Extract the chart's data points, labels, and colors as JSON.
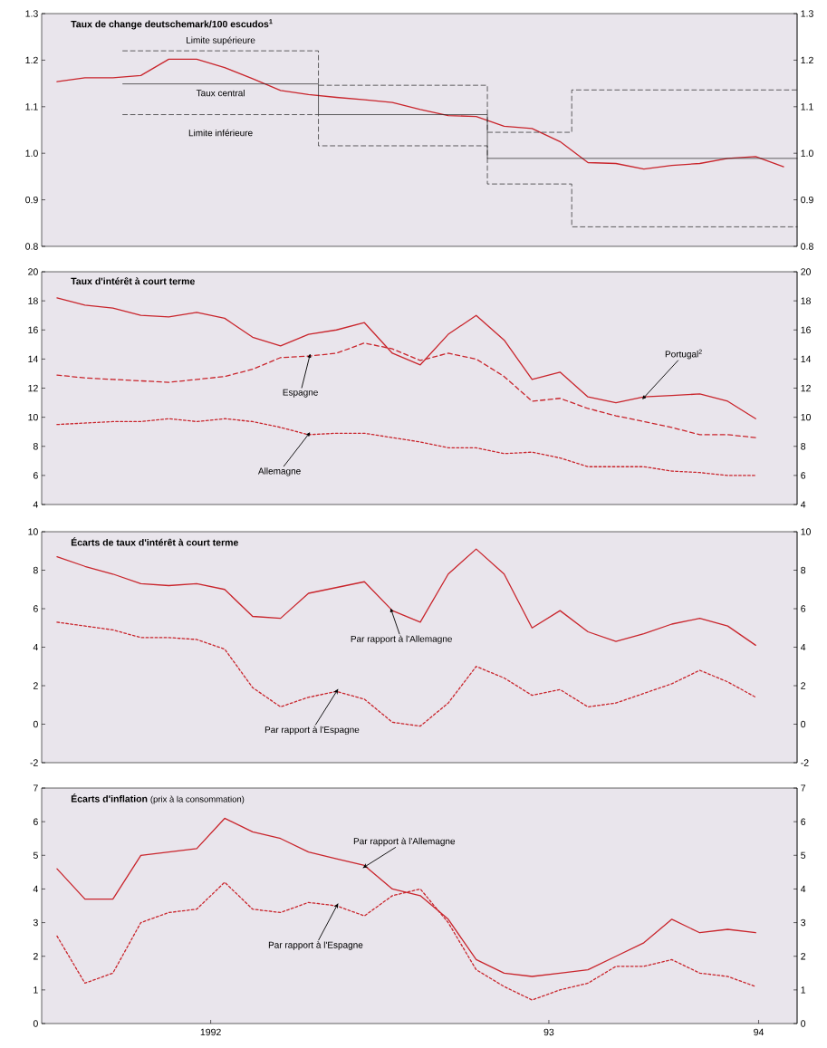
{
  "chart_data": [
    {
      "type": "line",
      "title": "Taux de change deutschemark/100 escudos$^{1}$",
      "x": [
        "1992-01",
        "1992-02",
        "1992-03",
        "1992-04",
        "1992-05",
        "1992-06",
        "1992-07",
        "1992-08",
        "1992-09",
        "1992-10",
        "1992-11",
        "1992-12",
        "1993-01",
        "1993-02",
        "1993-03",
        "1993-04",
        "1993-05",
        "1993-06",
        "1993-07",
        "1993-08",
        "1993-09",
        "1993-10",
        "1993-11",
        "1993-12",
        "1994-01",
        "1994-02",
        "1994-03"
      ],
      "xlim": [
        "1991-12-15",
        "1994-03-16"
      ],
      "ylim": [
        0.8,
        1.3
      ],
      "yticks": [
        0.8,
        0.9,
        {
          "value": 1.0,
          "label": "1.0"
        },
        1.1,
        1.2,
        1.3
      ],
      "y2lim": [
        0.8,
        1.3
      ],
      "y2ticks": [
        0.8,
        0.9,
        {
          "value": 1.0,
          "label": "1.0"
        },
        1.1,
        1.2,
        1.3
      ],
      "tick_labels": "y",
      "series": [
        {
          "color": "#c9252c",
          "line_style": "solid",
          "values": [
            1.154,
            1.162,
            1.162,
            1.167,
            1.202,
            1.202,
            1.184,
            1.16,
            1.135,
            1.126,
            1.12,
            1.115,
            1.109,
            1.094,
            1.081,
            1.079,
            1.058,
            1.053,
            1.025,
            0.98,
            0.978,
            0.966,
            0.974,
            0.978,
            0.989,
            0.993,
            0.971
          ]
        },
        {
          "type": "step",
          "name": "Limite supérieure",
          "color": "#222222",
          "line_style": "dashed",
          "x": [
            "1992-03-12",
            "1992-10-12",
            "1993-04-13",
            "1993-07-14",
            "1994-03-16"
          ],
          "values": [
            1.22,
            1.146,
            1.045,
            1.136,
            1.136
          ]
        },
        {
          "type": "step",
          "name": "Taux central",
          "color": "#222222",
          "line_style": "solid",
          "x": [
            "1992-03-12",
            "1992-10-12",
            "1993-04-13",
            "1994-03-16"
          ],
          "values": [
            1.149,
            1.083,
            0.989,
            0.989
          ]
        },
        {
          "type": "step",
          "name": "Limite inférieure",
          "color": "#222222",
          "line_style": "dashed",
          "x": [
            "1992-03-12",
            "1992-10-12",
            "1993-04-13",
            "1993-07-14",
            "1994-03-16"
          ],
          "values": [
            1.083,
            1.016,
            0.934,
            0.842,
            0.842
          ]
        }
      ]
    },
    {
      "type": "line",
      "title": "Taux d'intérêt à court terme",
      "x": [
        "1992-01",
        "1992-02",
        "1992-03",
        "1992-04",
        "1992-05",
        "1992-06",
        "1992-07",
        "1992-08",
        "1992-09",
        "1992-10",
        "1992-11",
        "1992-12",
        "1993-01",
        "1993-02",
        "1993-03",
        "1993-04",
        "1993-05",
        "1993-06",
        "1993-07",
        "1993-08",
        "1993-09",
        "1993-10",
        "1993-11",
        "1993-12",
        "1994-01",
        "1994-02"
      ],
      "xlim": [
        "1991-12-15",
        "1994-03-16"
      ],
      "ylim": [
        4,
        20
      ],
      "yticks": [
        4,
        6,
        8,
        10,
        12,
        14,
        16,
        18,
        20
      ],
      "y2lim": [
        4,
        20
      ],
      "y2ticks": [
        4,
        6,
        8,
        10,
        12,
        14,
        16,
        18,
        20
      ],
      "tick_labels": "y",
      "series": [
        {
          "name": "Portugal$^{2}$",
          "color": "#c9252c",
          "line_style": "solid",
          "values": [
            18.2,
            17.7,
            17.5,
            17.0,
            16.9,
            17.2,
            16.8,
            15.5,
            14.9,
            15.7,
            16.0,
            16.5,
            14.4,
            13.6,
            15.7,
            17.0,
            15.3,
            12.6,
            13.1,
            11.4,
            11.0,
            11.4,
            11.5,
            11.6,
            11.1,
            9.9
          ]
        },
        {
          "name": "Espagne",
          "color": "#c9252c",
          "line_style": "dashed",
          "values": [
            12.9,
            12.7,
            12.6,
            12.5,
            12.4,
            12.6,
            12.8,
            13.3,
            14.1,
            14.2,
            14.4,
            15.1,
            14.7,
            13.9,
            14.4,
            14.0,
            12.8,
            11.1,
            11.3,
            10.6,
            10.1,
            9.7,
            9.3,
            8.8,
            8.8,
            8.6
          ]
        },
        {
          "name": "Allemagne",
          "color": "#c9252c",
          "line_style": "dotted",
          "values": [
            9.5,
            9.6,
            9.7,
            9.7,
            9.9,
            9.7,
            9.9,
            9.7,
            9.3,
            8.8,
            8.9,
            8.9,
            8.6,
            8.3,
            7.9,
            7.9,
            7.5,
            7.6,
            7.2,
            6.6,
            6.6,
            6.6,
            6.3,
            6.2,
            6.0,
            6.0
          ]
        }
      ]
    },
    {
      "type": "line",
      "title": "Écarts de taux d'intérêt à court terme",
      "x": [
        "1992-01",
        "1992-02",
        "1992-03",
        "1992-04",
        "1992-05",
        "1992-06",
        "1992-07",
        "1992-08",
        "1992-09",
        "1992-10",
        "1992-11",
        "1992-12",
        "1993-01",
        "1993-02",
        "1993-03",
        "1993-04",
        "1993-05",
        "1993-06",
        "1993-07",
        "1993-08",
        "1993-09",
        "1993-10",
        "1993-11",
        "1993-12",
        "1994-01",
        "1994-02"
      ],
      "xlim": [
        "1991-12-15",
        "1994-03-16"
      ],
      "ylim": [
        -2,
        10
      ],
      "yticks": [
        -2,
        0,
        2,
        4,
        6,
        8,
        10
      ],
      "y2lim": [
        -2,
        10
      ],
      "y2ticks": [
        -2,
        0,
        2,
        4,
        6,
        8,
        10
      ],
      "tick_labels": "y",
      "series": [
        {
          "name": "Par rapport à l'Allemagne",
          "color": "#c9252c",
          "line_style": "solid",
          "values": [
            8.7,
            8.2,
            7.8,
            7.3,
            7.2,
            7.3,
            7.0,
            5.6,
            5.5,
            6.8,
            7.1,
            7.4,
            5.9,
            5.3,
            7.8,
            9.1,
            7.8,
            5.0,
            5.9,
            4.8,
            4.3,
            4.7,
            5.2,
            5.5,
            5.1,
            4.1
          ]
        },
        {
          "name": "Par rapport à l'Espagne",
          "color": "#c9252c",
          "line_style": "dotted",
          "values": [
            5.3,
            5.1,
            4.9,
            4.5,
            4.5,
            4.4,
            3.9,
            1.9,
            0.9,
            1.4,
            1.7,
            1.3,
            0.1,
            -0.1,
            1.1,
            3.0,
            2.4,
            1.5,
            1.8,
            0.9,
            1.1,
            1.6,
            2.1,
            2.8,
            2.2,
            1.4
          ]
        }
      ]
    },
    {
      "type": "line",
      "title": "Écarts d'inflation",
      "subtitle": "(prix à la consommation)",
      "x": [
        "1992-01",
        "1992-02",
        "1992-03",
        "1992-04",
        "1992-05",
        "1992-06",
        "1992-07",
        "1992-08",
        "1992-09",
        "1992-10",
        "1992-11",
        "1992-12",
        "1993-01",
        "1993-02",
        "1993-03",
        "1993-04",
        "1993-05",
        "1993-06",
        "1993-07",
        "1993-08",
        "1993-09",
        "1993-10",
        "1993-11",
        "1993-12",
        "1994-01",
        "1994-02"
      ],
      "xlim": [
        "1991-12-15",
        "1994-03-16"
      ],
      "xticks": [
        {
          "value": "1992-06-16",
          "label": "1992"
        },
        {
          "value": "1993-06-19",
          "label": "93"
        },
        {
          "value": "1994-02-04",
          "label": "94"
        }
      ],
      "ylim": [
        0,
        7
      ],
      "yticks": [
        0,
        1,
        2,
        3,
        4,
        5,
        6,
        7
      ],
      "y2lim": [
        0,
        7
      ],
      "y2ticks": [
        0,
        1,
        2,
        3,
        4,
        5,
        6,
        7
      ],
      "series": [
        {
          "name": "Par rapport à l'Allemagne",
          "color": "#c9252c",
          "line_style": "solid",
          "values": [
            4.6,
            3.7,
            3.7,
            5.0,
            5.1,
            5.2,
            6.1,
            5.7,
            5.5,
            5.1,
            4.9,
            4.7,
            4.0,
            3.8,
            3.1,
            1.9,
            1.5,
            1.4,
            1.5,
            1.6,
            2.0,
            2.4,
            3.1,
            2.7,
            2.8,
            2.7
          ]
        },
        {
          "name": "Par rapport à l'Espagne",
          "color": "#c9252c",
          "line_style": "dotted",
          "values": [
            2.6,
            1.2,
            1.5,
            3.0,
            3.3,
            3.4,
            4.2,
            3.4,
            3.3,
            3.6,
            3.5,
            3.2,
            3.8,
            4.0,
            3.0,
            1.6,
            1.1,
            0.7,
            1.0,
            1.2,
            1.7,
            1.7,
            1.9,
            1.5,
            1.4,
            1.1
          ]
        }
      ]
    }
  ]
}
